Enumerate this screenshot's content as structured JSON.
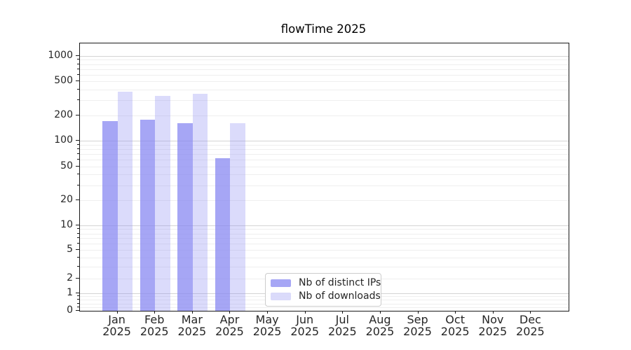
{
  "title": "flowTime 2025",
  "chart_data": {
    "type": "bar",
    "title": "flowTime 2025",
    "year": "2025",
    "months": [
      "Jan",
      "Feb",
      "Mar",
      "Apr",
      "May",
      "Jun",
      "Jul",
      "Aug",
      "Sep",
      "Oct",
      "Nov",
      "Dec"
    ],
    "series": [
      {
        "name": "Nb of distinct IPs",
        "color": "rgba(136,136,242,0.75)",
        "values": [
          172,
          178,
          162,
          62,
          null,
          null,
          null,
          null,
          null,
          null,
          null,
          null
        ]
      },
      {
        "name": "Nb of downloads",
        "color": "rgba(136,136,242,0.30)",
        "values": [
          380,
          340,
          360,
          160,
          null,
          null,
          null,
          null,
          null,
          null,
          null,
          null
        ]
      }
    ],
    "yscale": "asinh",
    "asinh_linear_width": 2,
    "ylim": [
      0,
      1400
    ],
    "y_major_ticks": [
      0,
      1,
      2,
      5,
      10,
      20,
      50,
      100,
      200,
      500,
      1000
    ],
    "y_minor_ticks": [
      0.2,
      0.4,
      0.6,
      0.8,
      3,
      4,
      6,
      7,
      8,
      9,
      30,
      40,
      60,
      70,
      80,
      90,
      300,
      400,
      600,
      700,
      800,
      900
    ],
    "emphasized_gridlines": [
      1,
      10,
      100,
      1000
    ],
    "grid": true,
    "legend_position": "lower center-left",
    "colors": {
      "bar_distinct_ips": "#a6a6f4",
      "bar_downloads": "#dbdbfa",
      "grid_minor": "#efefef",
      "grid_major": "#d4d4d4",
      "axis": "#1a1a1a",
      "tick_text": "#262626"
    }
  }
}
